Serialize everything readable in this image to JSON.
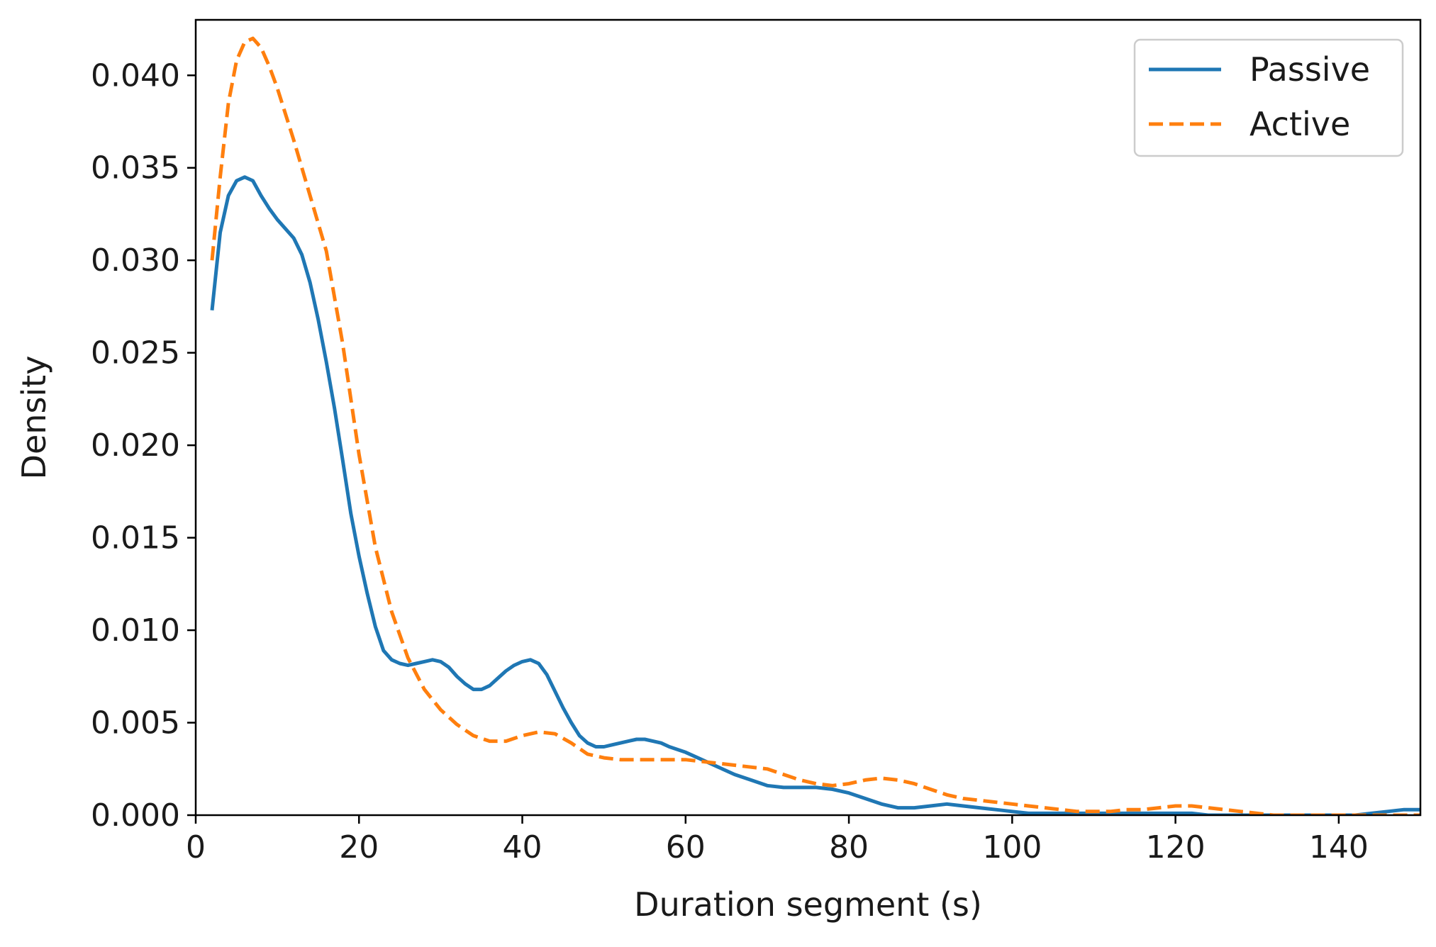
{
  "chart_data": {
    "type": "line",
    "xlabel": "Duration segment (s)",
    "ylabel": "Density",
    "xlim": [
      0,
      150
    ],
    "ylim": [
      0,
      0.043
    ],
    "x_ticks": [
      0,
      20,
      40,
      60,
      80,
      100,
      120,
      140
    ],
    "x_tick_labels": [
      "0",
      "20",
      "40",
      "60",
      "80",
      "100",
      "120",
      "140"
    ],
    "y_ticks": [
      0,
      0.005,
      0.01,
      0.015,
      0.02,
      0.025,
      0.03,
      0.035,
      0.04
    ],
    "y_tick_labels": [
      "0.000",
      "0.005",
      "0.010",
      "0.015",
      "0.020",
      "0.025",
      "0.030",
      "0.035",
      "0.040"
    ],
    "grid": false,
    "legend_position": "top-right",
    "series": [
      {
        "name": "Passive",
        "color": "#1f77b4",
        "style": "solid",
        "x": [
          2,
          3,
          4,
          5,
          6,
          7,
          8,
          9,
          10,
          12,
          13,
          14,
          15,
          16,
          17,
          18,
          19,
          20,
          21,
          22,
          23,
          24,
          25,
          26,
          27,
          28,
          29,
          30,
          31,
          32,
          33,
          34,
          35,
          36,
          37,
          38,
          39,
          40,
          41,
          42,
          43,
          44,
          45,
          46,
          47,
          48,
          49,
          50,
          51,
          52,
          53,
          54,
          55,
          56,
          57,
          58,
          60,
          62,
          64,
          66,
          68,
          70,
          72,
          74,
          76,
          78,
          80,
          82,
          84,
          86,
          88,
          90,
          92,
          94,
          96,
          98,
          100,
          102,
          104,
          106,
          108,
          110,
          112,
          114,
          116,
          118,
          120,
          122,
          124,
          126,
          128,
          130,
          132,
          134,
          136,
          138,
          140,
          142,
          144,
          146,
          148,
          150
        ],
        "y": [
          0.0273,
          0.0315,
          0.0335,
          0.0343,
          0.0345,
          0.0343,
          0.0335,
          0.0328,
          0.0322,
          0.0312,
          0.0303,
          0.0288,
          0.0268,
          0.0245,
          0.022,
          0.0192,
          0.0163,
          0.014,
          0.012,
          0.0102,
          0.0089,
          0.0084,
          0.0082,
          0.0081,
          0.0082,
          0.0083,
          0.0084,
          0.0083,
          0.008,
          0.0075,
          0.0071,
          0.0068,
          0.0068,
          0.007,
          0.0074,
          0.0078,
          0.0081,
          0.0083,
          0.0084,
          0.0082,
          0.0076,
          0.0067,
          0.0058,
          0.005,
          0.0043,
          0.0039,
          0.0037,
          0.0037,
          0.0038,
          0.0039,
          0.004,
          0.0041,
          0.0041,
          0.004,
          0.0039,
          0.0037,
          0.0034,
          0.003,
          0.0026,
          0.0022,
          0.0019,
          0.0016,
          0.0015,
          0.0015,
          0.0015,
          0.0014,
          0.0012,
          0.0009,
          0.0006,
          0.0004,
          0.0004,
          0.0005,
          0.0006,
          0.0005,
          0.0004,
          0.0003,
          0.0002,
          0.0001,
          0.0001,
          0.0001,
          0.0001,
          0.0001,
          0.0001,
          0.0001,
          0.0001,
          0.0001,
          0.0001,
          0.0001,
          0.0,
          0.0,
          0.0,
          0.0,
          0.0,
          0.0,
          0.0,
          0.0,
          0.0,
          0.0,
          0.0001,
          0.0002,
          0.0003,
          0.0003
        ]
      },
      {
        "name": "Active",
        "color": "#ff7f0e",
        "style": "dashed",
        "x": [
          2,
          3,
          4,
          5,
          6,
          7,
          8,
          9,
          10,
          12,
          14,
          16,
          18,
          20,
          22,
          24,
          26,
          28,
          30,
          32,
          34,
          36,
          38,
          40,
          42,
          44,
          46,
          48,
          50,
          52,
          54,
          56,
          58,
          60,
          62,
          64,
          66,
          68,
          70,
          72,
          74,
          76,
          78,
          80,
          82,
          84,
          86,
          88,
          90,
          92,
          94,
          96,
          98,
          100,
          102,
          104,
          106,
          108,
          110,
          112,
          114,
          116,
          118,
          120,
          122,
          124,
          126,
          128,
          130,
          132,
          134,
          136,
          138,
          140,
          142,
          144,
          146,
          148,
          150
        ],
        "y": [
          0.03,
          0.0345,
          0.0385,
          0.0408,
          0.0418,
          0.042,
          0.0415,
          0.0405,
          0.0393,
          0.0365,
          0.0335,
          0.0305,
          0.0255,
          0.0195,
          0.0145,
          0.011,
          0.0085,
          0.0068,
          0.0057,
          0.0049,
          0.0043,
          0.004,
          0.004,
          0.0043,
          0.0045,
          0.0044,
          0.0039,
          0.0033,
          0.0031,
          0.003,
          0.003,
          0.003,
          0.003,
          0.003,
          0.0029,
          0.0028,
          0.0027,
          0.0026,
          0.0025,
          0.0022,
          0.0019,
          0.0017,
          0.0016,
          0.0017,
          0.0019,
          0.002,
          0.0019,
          0.0017,
          0.0014,
          0.0011,
          0.0009,
          0.0008,
          0.0007,
          0.0006,
          0.0005,
          0.0004,
          0.0003,
          0.0002,
          0.0002,
          0.0002,
          0.0003,
          0.0003,
          0.0004,
          0.0005,
          0.0005,
          0.0004,
          0.0003,
          0.0002,
          0.0001,
          0.0,
          0.0,
          0.0,
          0.0,
          0.0,
          0.0,
          0.0,
          0.0,
          0.0,
          0.0
        ]
      }
    ]
  }
}
